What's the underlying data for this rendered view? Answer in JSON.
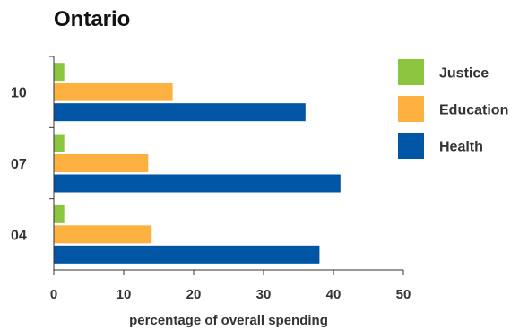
{
  "chart_data": {
    "type": "bar",
    "orientation": "horizontal",
    "title": "Ontario",
    "xlabel": "percentage of overall spending",
    "ylabel": "",
    "xlim": [
      0,
      50
    ],
    "x_ticks": [
      "0",
      "10",
      "20",
      "30",
      "40",
      "50"
    ],
    "categories": [
      "10",
      "07",
      "04"
    ],
    "series": [
      {
        "name": "Justice",
        "color": "#8cc63f",
        "values": [
          1.5,
          1.5,
          1.5
        ]
      },
      {
        "name": "Education",
        "color": "#fbb040",
        "values": [
          17,
          13.5,
          14
        ]
      },
      {
        "name": "Health",
        "color": "#0055a5",
        "values": [
          36,
          41,
          38
        ]
      }
    ],
    "grid": false,
    "legend_position": "top-right"
  }
}
